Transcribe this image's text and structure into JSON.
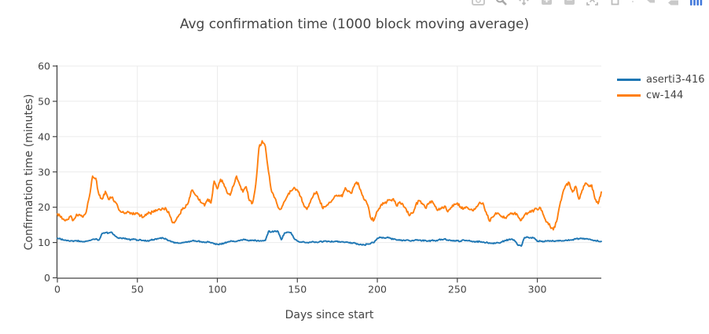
{
  "chart_data": {
    "type": "line",
    "title": "Avg confirmation time (1000 block moving average)",
    "xlabel": "Days since start",
    "ylabel": "Confirmation time (minutes)",
    "xlim": [
      0,
      340
    ],
    "ylim": [
      0,
      60
    ],
    "xticks": [
      0,
      50,
      100,
      150,
      200,
      250,
      300
    ],
    "yticks": [
      0,
      10,
      20,
      30,
      40,
      50,
      60
    ],
    "grid": true,
    "grid_color": "#ebebeb",
    "axis_color": "#444444",
    "background_color": "#ffffff",
    "legend_position": "right",
    "x_start": 0,
    "x_step": 2,
    "series": [
      {
        "name": "aserti3-416",
        "color": "#1f77b4",
        "values": [
          11.2,
          11.0,
          10.7,
          10.5,
          10.4,
          10.3,
          10.5,
          10.4,
          10.2,
          10.4,
          10.6,
          10.9,
          11.0,
          10.7,
          12.6,
          12.8,
          12.7,
          12.9,
          11.9,
          11.3,
          11.2,
          11.1,
          10.9,
          10.8,
          10.9,
          10.7,
          10.8,
          10.6,
          10.4,
          10.7,
          10.8,
          10.9,
          11.2,
          11.3,
          10.9,
          10.5,
          10.2,
          9.9,
          9.8,
          10.0,
          10.1,
          10.3,
          10.4,
          10.5,
          10.4,
          10.2,
          10.0,
          10.3,
          9.9,
          9.6,
          9.5,
          9.6,
          9.8,
          10.1,
          10.3,
          10.4,
          10.3,
          10.5,
          10.8,
          10.7,
          10.5,
          10.6,
          10.6,
          10.4,
          10.5,
          10.6,
          13.2,
          13.0,
          13.3,
          13.1,
          10.8,
          12.7,
          12.9,
          12.8,
          11.1,
          10.4,
          10.1,
          10.2,
          10.0,
          10.1,
          10.2,
          10.1,
          10.3,
          10.2,
          10.4,
          10.3,
          10.2,
          10.4,
          10.3,
          10.2,
          10.1,
          10.0,
          9.9,
          9.8,
          9.5,
          9.4,
          9.3,
          9.6,
          9.8,
          10.0,
          11.2,
          11.4,
          11.3,
          11.4,
          11.2,
          10.9,
          10.7,
          10.8,
          10.6,
          10.7,
          10.5,
          10.6,
          10.8,
          10.7,
          10.5,
          10.6,
          10.4,
          10.6,
          10.5,
          10.7,
          10.9,
          11.0,
          10.7,
          10.5,
          10.4,
          10.5,
          10.4,
          10.7,
          10.5,
          10.4,
          10.3,
          10.2,
          10.3,
          10.1,
          10.0,
          9.9,
          9.8,
          9.8,
          9.9,
          10.2,
          10.6,
          10.8,
          11.0,
          10.4,
          9.2,
          9.0,
          11.4,
          11.5,
          11.4,
          11.3,
          10.3,
          10.4,
          10.3,
          10.4,
          10.5,
          10.4,
          10.5,
          10.6,
          10.5,
          10.7,
          10.6,
          10.8,
          11.0,
          11.1,
          11.2,
          11.1,
          10.9,
          10.7,
          10.6,
          10.4,
          10.3
        ]
      },
      {
        "name": "cw-144",
        "color": "#ff7f0e",
        "values": [
          18.1,
          17.2,
          16.6,
          16.4,
          17.4,
          16.3,
          18.0,
          17.9,
          17.2,
          18.6,
          23.0,
          28.8,
          28.2,
          23.5,
          22.3,
          24.5,
          22.2,
          22.8,
          21.6,
          19.8,
          18.6,
          18.2,
          18.8,
          18.4,
          18.0,
          18.4,
          17.6,
          17.3,
          18.2,
          18.4,
          18.6,
          19.0,
          19.4,
          19.7,
          19.5,
          18.0,
          15.6,
          16.2,
          17.8,
          19.3,
          19.9,
          21.5,
          24.8,
          23.6,
          22.4,
          21.3,
          20.4,
          22.3,
          21.2,
          27.4,
          25.2,
          27.9,
          26.6,
          24.2,
          23.4,
          26.0,
          28.8,
          26.3,
          24.3,
          25.8,
          21.9,
          21.2,
          26.5,
          36.8,
          38.8,
          37.2,
          30.0,
          24.3,
          22.6,
          19.9,
          19.6,
          21.7,
          23.4,
          24.6,
          25.6,
          24.9,
          23.0,
          20.6,
          19.4,
          21.3,
          23.3,
          24.4,
          21.9,
          19.6,
          20.3,
          21.4,
          22.1,
          23.2,
          23.4,
          23.0,
          25.5,
          24.6,
          24.0,
          26.6,
          26.9,
          24.2,
          22.0,
          20.6,
          16.8,
          16.4,
          18.9,
          20.4,
          21.0,
          21.6,
          22.0,
          22.4,
          20.4,
          21.5,
          20.8,
          19.5,
          17.6,
          18.3,
          20.6,
          21.9,
          21.1,
          19.8,
          20.9,
          21.8,
          20.3,
          19.2,
          19.6,
          20.3,
          18.7,
          19.9,
          20.9,
          21.2,
          20.1,
          19.6,
          20.0,
          19.3,
          19.0,
          20.2,
          21.4,
          21.2,
          18.6,
          16.1,
          17.2,
          18.4,
          18.1,
          17.4,
          17.0,
          17.9,
          18.1,
          18.5,
          17.3,
          16.3,
          17.8,
          18.3,
          18.6,
          19.2,
          19.3,
          19.8,
          17.6,
          15.8,
          14.6,
          13.6,
          15.9,
          20.5,
          24.2,
          26.3,
          26.9,
          24.3,
          25.9,
          22.3,
          24.8,
          26.8,
          26.0,
          26.3,
          22.4,
          21.0,
          24.3
        ]
      }
    ]
  },
  "modebar": {
    "icon_color": "#bcbcbc",
    "logo_color": "#447adb",
    "icons": [
      "camera-icon",
      "zoom-icon",
      "pan-icon",
      "zoom-in-icon",
      "zoom-out-icon",
      "autoscale-icon",
      "reset-axes-icon",
      "hover-closest-icon",
      "hover-compare-icon",
      "plotly-logo-icon"
    ]
  }
}
